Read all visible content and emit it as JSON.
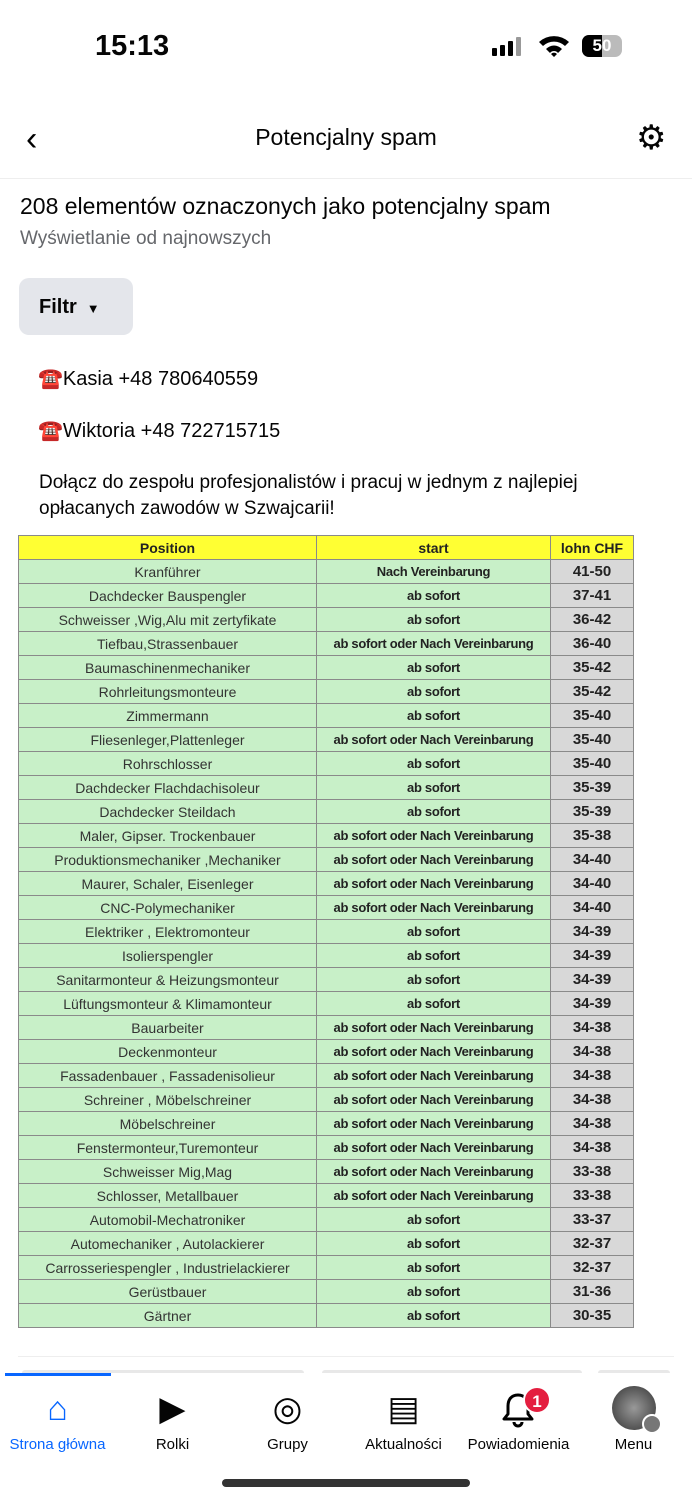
{
  "status": {
    "time": "15:13",
    "battery": "50",
    "battery_level": 0.5
  },
  "header": {
    "title": "Potencjalny spam"
  },
  "summary": {
    "count_text": "208 elementów oznaczonych jako potencjalny spam",
    "sort_text": "Wyświetlanie od najnowszych",
    "filter_label": "Filtr"
  },
  "post": {
    "contact1": "☎️Kasia +48 780640559",
    "contact2": "☎️Wiktoria +48 722715715",
    "text": "Dołącz do zespołu profesjonalistów i pracuj w jednym z najlepiej opłacanych zawodów w Szwajcarii!",
    "table": {
      "headers": [
        "Position",
        "start",
        "lohn CHF"
      ],
      "rows": [
        [
          "Kranführer",
          "Nach Vereinbarung",
          "41-50"
        ],
        [
          "Dachdecker Bauspengler",
          "ab sofort",
          "37-41"
        ],
        [
          "Schweisser ,Wig,Alu mit zertyfikate",
          "ab sofort",
          "36-42"
        ],
        [
          "Tiefbau,Strassenbauer",
          "ab sofort oder Nach Vereinbarung",
          "36-40"
        ],
        [
          "Baumaschinenmechaniker",
          "ab sofort",
          "35-42"
        ],
        [
          "Rohrleitungsmonteure",
          "ab sofort",
          "35-42"
        ],
        [
          "Zimmermann",
          "ab sofort",
          "35-40"
        ],
        [
          "Fliesenleger,Plattenleger",
          "ab sofort oder Nach Vereinbarung",
          "35-40"
        ],
        [
          "Rohrschlosser",
          "ab sofort",
          "35-40"
        ],
        [
          "Dachdecker Flachdachisoleur",
          "ab sofort",
          "35-39"
        ],
        [
          "Dachdecker Steildach",
          "ab sofort",
          "35-39"
        ],
        [
          "Maler, Gipser. Trockenbauer",
          "ab sofort oder Nach Vereinbarung",
          "35-38"
        ],
        [
          "Produktionsmechaniker ,Mechaniker",
          "ab sofort oder Nach Vereinbarung",
          "34-40"
        ],
        [
          "Maurer, Schaler, Eisenleger",
          "ab sofort oder Nach Vereinbarung",
          "34-40"
        ],
        [
          "CNC-Polymechaniker",
          "ab sofort oder Nach Vereinbarung",
          "34-40"
        ],
        [
          "Elektriker , Elektromonteur",
          "ab sofort",
          "34-39"
        ],
        [
          "Isolierspengler",
          "ab sofort",
          "34-39"
        ],
        [
          "Sanitarmonteur & Heizungsmonteur",
          "ab sofort",
          "34-39"
        ],
        [
          "Lüftungsmonteur & Klimamonteur",
          "ab sofort",
          "34-39"
        ],
        [
          "Bauarbeiter",
          "ab sofort oder Nach Vereinbarung",
          "34-38"
        ],
        [
          "Deckenmonteur",
          "ab sofort oder Nach Vereinbarung",
          "34-38"
        ],
        [
          "Fassadenbauer , Fassadenisolieur",
          "ab sofort oder Nach Vereinbarung",
          "34-38"
        ],
        [
          "Schreiner , Möbelschreiner",
          "ab sofort oder Nach Vereinbarung",
          "34-38"
        ],
        [
          "Möbelschreiner",
          "ab sofort oder Nach Vereinbarung",
          "34-38"
        ],
        [
          "Fenstermonteur,Turemonteur",
          "ab sofort oder Nach Vereinbarung",
          "34-38"
        ],
        [
          "Schweisser Mig,Mag",
          "ab sofort oder Nach Vereinbarung",
          "33-38"
        ],
        [
          "Schlosser, Metallbauer",
          "ab sofort oder Nach Vereinbarung",
          "33-38"
        ],
        [
          "Automobil-Mechatroniker",
          "ab sofort",
          "33-37"
        ],
        [
          "Automechaniker , Autolackierer",
          "ab sofort",
          "32-37"
        ],
        [
          "Carrosseriespengler ,  Industrielackierer",
          "ab sofort",
          "32-37"
        ],
        [
          "Gerüstbauer",
          "ab sofort",
          "31-36"
        ],
        [
          "Gärtner",
          "ab sofort",
          "30-35"
        ]
      ]
    }
  },
  "nav": {
    "items": [
      {
        "label": "Strona główna",
        "icon": "home-icon",
        "active": true
      },
      {
        "label": "Rolki",
        "icon": "reels-icon"
      },
      {
        "label": "Grupy",
        "icon": "groups-icon"
      },
      {
        "label": "Aktualności",
        "icon": "feeds-icon"
      },
      {
        "label": "Powiadomienia",
        "icon": "bell-icon",
        "badge": "1"
      },
      {
        "label": "Menu",
        "icon": "avatar-menu-icon"
      }
    ],
    "accent": "#0866ff"
  }
}
